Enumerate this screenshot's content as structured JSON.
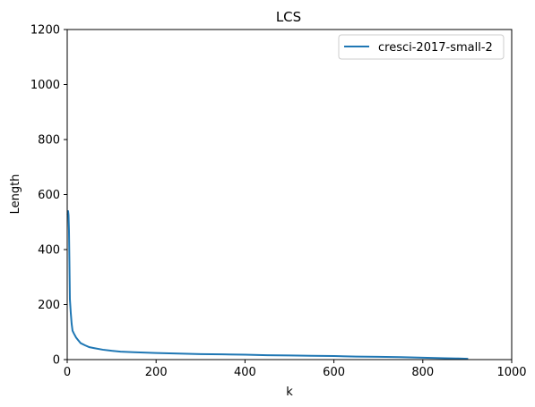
{
  "chart_data": {
    "type": "line",
    "title": "LCS",
    "xlabel": "k",
    "ylabel": "Length",
    "xlim": [
      0,
      1000
    ],
    "ylim": [
      0,
      1200
    ],
    "xticks": [
      "0",
      "200",
      "400",
      "600",
      "800",
      "1000"
    ],
    "yticks": [
      "0",
      "200",
      "400",
      "600",
      "800",
      "1000",
      "1200"
    ],
    "grid": false,
    "legend_position": "top-right",
    "series": [
      {
        "name": "cresci-2017-small-2",
        "color": "#1f77b4",
        "x": [
          1,
          2,
          3,
          4,
          5,
          6,
          8,
          10,
          12,
          15,
          20,
          25,
          30,
          40,
          50,
          60,
          80,
          100,
          120,
          150,
          200,
          250,
          300,
          350,
          400,
          450,
          500,
          550,
          600,
          650,
          700,
          750,
          800,
          850,
          880,
          900
        ],
        "y": [
          530,
          540,
          525,
          470,
          350,
          220,
          170,
          130,
          105,
          95,
          80,
          70,
          60,
          52,
          45,
          42,
          36,
          32,
          29,
          27,
          24,
          22,
          20,
          19,
          18,
          16,
          15,
          14,
          13,
          11,
          10,
          9,
          7,
          5,
          4,
          3
        ]
      }
    ]
  }
}
